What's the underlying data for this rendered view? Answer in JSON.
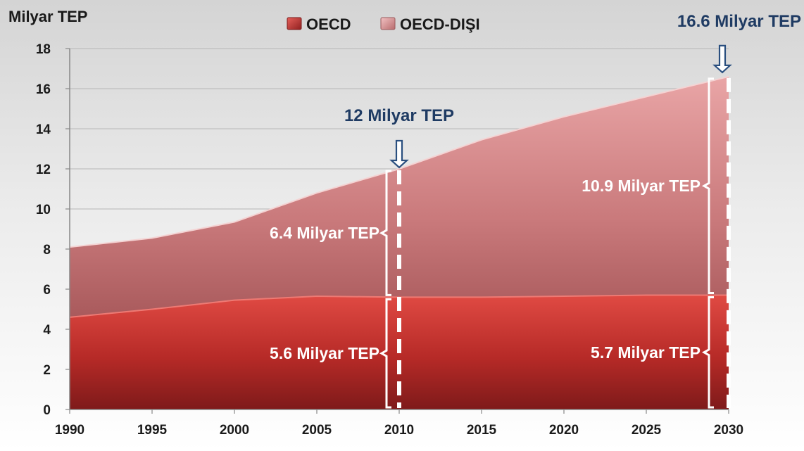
{
  "chart_data": {
    "type": "area",
    "stacked": true,
    "ylabel": "Milyar TEP",
    "xlabel": "",
    "ylim": [
      0,
      18
    ],
    "yticks": [
      0,
      2,
      4,
      6,
      8,
      10,
      12,
      14,
      16,
      18
    ],
    "x": [
      1990,
      1995,
      2000,
      2005,
      2010,
      2015,
      2020,
      2025,
      2030
    ],
    "xlim": [
      1990,
      2030
    ],
    "grid": true,
    "legend_position": "top-center",
    "series": [
      {
        "name": "OECD",
        "values": [
          4.6,
          5.0,
          5.45,
          5.65,
          5.6,
          5.6,
          5.65,
          5.7,
          5.7
        ],
        "color": "#c0312c"
      },
      {
        "name": "OECD-DIŞI",
        "values": [
          3.5,
          3.55,
          3.9,
          5.15,
          6.4,
          7.85,
          8.95,
          9.9,
          10.9
        ],
        "color": "#d98a8c"
      }
    ],
    "annotations": {
      "top_2010": {
        "text": "12 Milyar TEP",
        "x": 2010,
        "y": 12
      },
      "top_2030": {
        "text": "16.6 Milyar TEP",
        "x": 2030,
        "y": 16.6
      },
      "oecd_2010": {
        "text": "5.6 Milyar TEP",
        "x": 2010,
        "from": 0,
        "to": 5.6
      },
      "non_oecd_2010": {
        "text": "6.4 Milyar TEP",
        "x": 2010,
        "from": 5.6,
        "to": 12
      },
      "oecd_2030": {
        "text": "5.7 Milyar TEP",
        "x": 2030,
        "from": 0,
        "to": 5.7
      },
      "non_oecd_2030": {
        "text": "10.9 Milyar TEP",
        "x": 2030,
        "from": 5.7,
        "to": 16.6
      }
    }
  }
}
